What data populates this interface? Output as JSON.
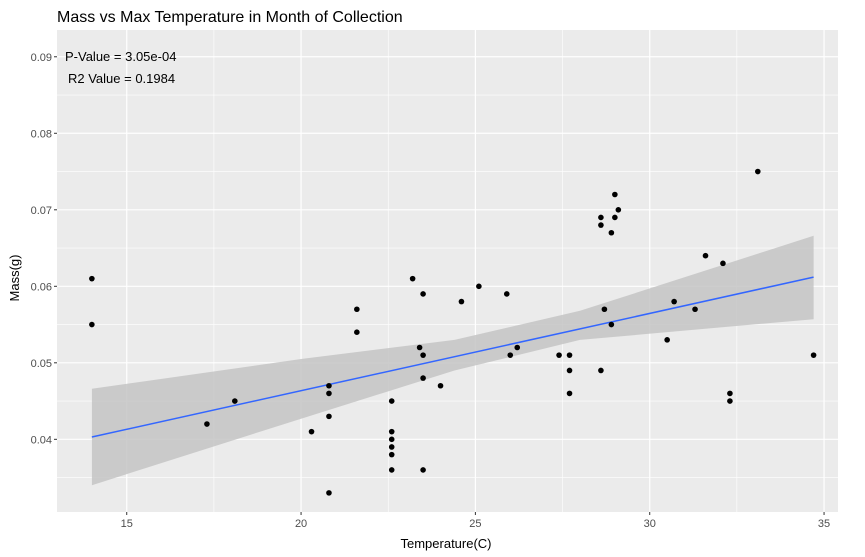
{
  "chart_data": {
    "type": "scatter",
    "title": "Mass vs Max Temperature in Month of Collection",
    "xlabel": "Temperature(C)",
    "ylabel": "Mass(g)",
    "xlim": [
      13,
      35.4
    ],
    "ylim": [
      0.0305,
      0.0935
    ],
    "xticks": [
      15,
      20,
      25,
      30,
      35
    ],
    "xtick_labels": [
      "15",
      "20",
      "25",
      "30",
      "35"
    ],
    "yticks": [
      0.04,
      0.05,
      0.06,
      0.07,
      0.08,
      0.09
    ],
    "ytick_labels": [
      "0.04",
      "0.05",
      "0.06",
      "0.07",
      "0.08",
      "0.09"
    ],
    "grid": true,
    "annotations": [
      "P-Value = 3.05e-04",
      "R2 Value = 0.1984"
    ],
    "points": [
      [
        14.0,
        0.061
      ],
      [
        14.0,
        0.055
      ],
      [
        17.3,
        0.042
      ],
      [
        18.1,
        0.045
      ],
      [
        20.3,
        0.041
      ],
      [
        20.8,
        0.047
      ],
      [
        20.8,
        0.046
      ],
      [
        20.8,
        0.043
      ],
      [
        20.8,
        0.033
      ],
      [
        21.6,
        0.057
      ],
      [
        21.6,
        0.054
      ],
      [
        22.6,
        0.045
      ],
      [
        22.6,
        0.041
      ],
      [
        22.6,
        0.04
      ],
      [
        22.6,
        0.039
      ],
      [
        22.6,
        0.038
      ],
      [
        22.6,
        0.036
      ],
      [
        23.2,
        0.061
      ],
      [
        23.4,
        0.052
      ],
      [
        23.5,
        0.059
      ],
      [
        23.5,
        0.051
      ],
      [
        23.5,
        0.048
      ],
      [
        23.5,
        0.036
      ],
      [
        24.0,
        0.047
      ],
      [
        24.6,
        0.058
      ],
      [
        25.1,
        0.06
      ],
      [
        25.9,
        0.059
      ],
      [
        26.0,
        0.051
      ],
      [
        26.2,
        0.052
      ],
      [
        27.4,
        0.051
      ],
      [
        27.7,
        0.051
      ],
      [
        27.7,
        0.049
      ],
      [
        27.7,
        0.046
      ],
      [
        28.6,
        0.069
      ],
      [
        28.6,
        0.068
      ],
      [
        28.6,
        0.049
      ],
      [
        28.7,
        0.057
      ],
      [
        28.9,
        0.067
      ],
      [
        28.9,
        0.055
      ],
      [
        29.0,
        0.072
      ],
      [
        29.0,
        0.069
      ],
      [
        29.1,
        0.07
      ],
      [
        30.5,
        0.053
      ],
      [
        30.7,
        0.058
      ],
      [
        31.3,
        0.057
      ],
      [
        31.6,
        0.064
      ],
      [
        32.1,
        0.063
      ],
      [
        32.3,
        0.046
      ],
      [
        32.3,
        0.045
      ],
      [
        33.1,
        0.075
      ],
      [
        34.7,
        0.051
      ]
    ],
    "fit_line": {
      "x": [
        14.0,
        34.7
      ],
      "y": [
        0.0403,
        0.0612
      ]
    },
    "confidence_band": {
      "x": [
        14.0,
        20.0,
        24.4,
        28.0,
        34.7
      ],
      "lower": [
        0.034,
        0.0427,
        0.049,
        0.053,
        0.0557
      ],
      "upper": [
        0.0466,
        0.0505,
        0.053,
        0.0568,
        0.0666
      ]
    },
    "colors": {
      "panel": "#ebebeb",
      "grid": "#ffffff",
      "point": "#000000",
      "line": "#3366ff",
      "band": "#c4c4c4"
    }
  }
}
